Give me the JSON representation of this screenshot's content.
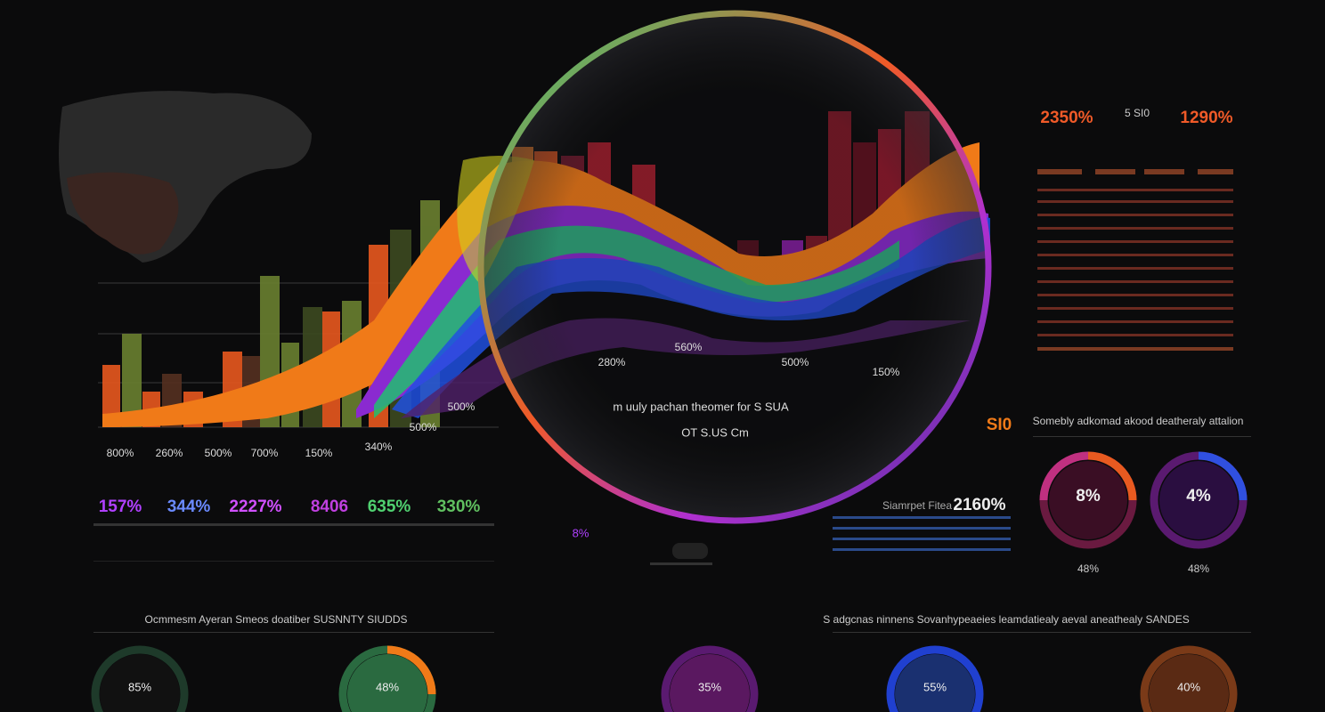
{
  "top_right_stats": [
    "2350%",
    "5 SI0",
    "1290%"
  ],
  "left_chart_labels": [
    "800%",
    "260%",
    "500%",
    "700%",
    "150%",
    "340%",
    "500%",
    "500%"
  ],
  "center_chart_labels": [
    "280%",
    "560%",
    "500%",
    "150%"
  ],
  "center_text": [
    "m uuly pachan theomer for S SUA",
    "OT S.US Cm"
  ],
  "left_kpis": [
    "157%",
    "344%",
    "2227%",
    "8406",
    "635%",
    "330%"
  ],
  "mid_small": "8%",
  "right_header": {
    "value": "SI0",
    "text": "Somebly adkomad akood deatheraly attalion"
  },
  "mid_right_stat": {
    "label": "Siamrpet Fitea",
    "value": "2160%"
  },
  "right_donuts": [
    {
      "value": "8%",
      "caption": "48%"
    },
    {
      "value": "4%",
      "caption": "48%"
    }
  ],
  "bottom_headings": [
    "Ocmmesm Ayeran Smeos doatiber SUSNNTY SIUDDS",
    "S adgcnas ninnens Sovanhypeaeies leamdatiealy aeval aneathealy SANDES"
  ],
  "bottom_donuts": [
    "85%",
    "48%",
    "35%",
    "55%",
    "40%"
  ]
}
